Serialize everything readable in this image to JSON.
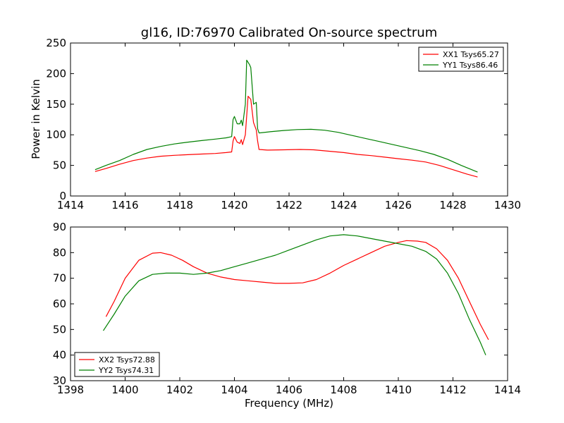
{
  "figure": {
    "title": "gl16, ID:76970 Calibrated On-source spectrum",
    "ylabel": "Power in Kelvin",
    "xlabel": "Frequency (MHz)"
  },
  "chart_data": [
    {
      "type": "line",
      "title": "gl16, ID:76970 Calibrated On-source spectrum",
      "xlabel": "",
      "ylabel": "Power in Kelvin",
      "xlim": [
        1414,
        1430
      ],
      "ylim": [
        0,
        250
      ],
      "xticks": [
        1414,
        1416,
        1418,
        1420,
        1422,
        1424,
        1426,
        1428,
        1430
      ],
      "yticks": [
        0,
        50,
        100,
        150,
        200,
        250
      ],
      "legend_position": "top-right",
      "grid": false,
      "series": [
        {
          "name": "XX1 Tsys65.27",
          "color": "#ff0000",
          "points": [
            [
              1414.9,
              40
            ],
            [
              1415.3,
              45
            ],
            [
              1415.8,
              52
            ],
            [
              1416.3,
              58
            ],
            [
              1416.8,
              62
            ],
            [
              1417.3,
              65
            ],
            [
              1417.8,
              66.5
            ],
            [
              1418.3,
              67.5
            ],
            [
              1418.8,
              68.5
            ],
            [
              1419.3,
              69.5
            ],
            [
              1419.7,
              71
            ],
            [
              1419.9,
              72
            ],
            [
              1419.95,
              90
            ],
            [
              1420.0,
              97
            ],
            [
              1420.1,
              88
            ],
            [
              1420.2,
              86
            ],
            [
              1420.25,
              92
            ],
            [
              1420.3,
              84
            ],
            [
              1420.4,
              100
            ],
            [
              1420.5,
              163
            ],
            [
              1420.6,
              158
            ],
            [
              1420.7,
              120
            ],
            [
              1420.8,
              108
            ],
            [
              1420.85,
              90
            ],
            [
              1420.9,
              76
            ],
            [
              1421.2,
              75
            ],
            [
              1421.8,
              75.5
            ],
            [
              1422.4,
              76
            ],
            [
              1422.9,
              75.5
            ],
            [
              1423.5,
              73
            ],
            [
              1424.0,
              71
            ],
            [
              1424.5,
              68
            ],
            [
              1425.0,
              66
            ],
            [
              1425.5,
              63.5
            ],
            [
              1426.0,
              61
            ],
            [
              1426.5,
              58.5
            ],
            [
              1427.0,
              55.5
            ],
            [
              1427.5,
              50
            ],
            [
              1428.0,
              43
            ],
            [
              1428.5,
              36
            ],
            [
              1428.9,
              31
            ]
          ]
        },
        {
          "name": "YY1 Tsys86.46",
          "color": "#008000",
          "points": [
            [
              1414.9,
              43
            ],
            [
              1415.3,
              50
            ],
            [
              1415.8,
              58
            ],
            [
              1416.3,
              68
            ],
            [
              1416.8,
              76
            ],
            [
              1417.3,
              81
            ],
            [
              1417.8,
              85
            ],
            [
              1418.3,
              88
            ],
            [
              1418.8,
              90.5
            ],
            [
              1419.3,
              93
            ],
            [
              1419.7,
              95
            ],
            [
              1419.9,
              97
            ],
            [
              1419.95,
              125
            ],
            [
              1420.0,
              130
            ],
            [
              1420.1,
              118
            ],
            [
              1420.2,
              118
            ],
            [
              1420.25,
              124
            ],
            [
              1420.3,
              115
            ],
            [
              1420.4,
              150
            ],
            [
              1420.45,
              222
            ],
            [
              1420.55,
              215
            ],
            [
              1420.6,
              210
            ],
            [
              1420.7,
              150
            ],
            [
              1420.8,
              153
            ],
            [
              1420.85,
              110
            ],
            [
              1420.9,
              103
            ],
            [
              1421.3,
              105
            ],
            [
              1421.8,
              107
            ],
            [
              1422.3,
              108.5
            ],
            [
              1422.8,
              109
            ],
            [
              1423.3,
              107.5
            ],
            [
              1423.8,
              104
            ],
            [
              1424.3,
              99
            ],
            [
              1424.8,
              94
            ],
            [
              1425.3,
              89
            ],
            [
              1425.8,
              84
            ],
            [
              1426.3,
              79
            ],
            [
              1426.8,
              74
            ],
            [
              1427.3,
              68
            ],
            [
              1427.8,
              60
            ],
            [
              1428.3,
              50
            ],
            [
              1428.9,
              39
            ]
          ]
        }
      ]
    },
    {
      "type": "line",
      "title": "",
      "xlabel": "Frequency (MHz)",
      "ylabel": "",
      "xlim": [
        1398,
        1414
      ],
      "ylim": [
        30,
        90
      ],
      "xticks": [
        1398,
        1400,
        1402,
        1404,
        1406,
        1408,
        1410,
        1412,
        1414
      ],
      "yticks": [
        30,
        40,
        50,
        60,
        70,
        80,
        90
      ],
      "legend_position": "bottom-left",
      "grid": false,
      "series": [
        {
          "name": "XX2 Tsys72.88",
          "color": "#ff0000",
          "points": [
            [
              1399.3,
              55
            ],
            [
              1399.6,
              61
            ],
            [
              1400.0,
              70
            ],
            [
              1400.5,
              77
            ],
            [
              1401.0,
              79.8
            ],
            [
              1401.3,
              80
            ],
            [
              1401.7,
              79
            ],
            [
              1402.1,
              77
            ],
            [
              1402.5,
              74.5
            ],
            [
              1403.0,
              72
            ],
            [
              1403.5,
              70.5
            ],
            [
              1404.0,
              69.5
            ],
            [
              1404.5,
              69
            ],
            [
              1405.0,
              68.5
            ],
            [
              1405.5,
              68
            ],
            [
              1406.0,
              68
            ],
            [
              1406.5,
              68.2
            ],
            [
              1407.0,
              69.5
            ],
            [
              1407.5,
              72
            ],
            [
              1408.0,
              75
            ],
            [
              1408.5,
              77.5
            ],
            [
              1409.0,
              80
            ],
            [
              1409.5,
              82.5
            ],
            [
              1410.0,
              84
            ],
            [
              1410.3,
              84.7
            ],
            [
              1410.7,
              84.5
            ],
            [
              1411.0,
              84
            ],
            [
              1411.4,
              81.5
            ],
            [
              1411.8,
              77
            ],
            [
              1412.2,
              70
            ],
            [
              1412.6,
              61
            ],
            [
              1413.0,
              52
            ],
            [
              1413.3,
              46
            ]
          ]
        },
        {
          "name": "YY2 Tsys74.31",
          "color": "#008000",
          "points": [
            [
              1399.2,
              49.5
            ],
            [
              1399.6,
              56
            ],
            [
              1400.0,
              63
            ],
            [
              1400.5,
              69
            ],
            [
              1401.0,
              71.5
            ],
            [
              1401.5,
              72
            ],
            [
              1402.0,
              72
            ],
            [
              1402.5,
              71.5
            ],
            [
              1403.0,
              72
            ],
            [
              1403.5,
              73
            ],
            [
              1404.0,
              74.5
            ],
            [
              1404.5,
              76
            ],
            [
              1405.0,
              77.5
            ],
            [
              1405.5,
              79
            ],
            [
              1406.0,
              81
            ],
            [
              1406.5,
              83
            ],
            [
              1407.0,
              85
            ],
            [
              1407.5,
              86.5
            ],
            [
              1408.0,
              87
            ],
            [
              1408.5,
              86.5
            ],
            [
              1409.0,
              85.5
            ],
            [
              1409.5,
              84.5
            ],
            [
              1410.0,
              83.5
            ],
            [
              1410.5,
              82.5
            ],
            [
              1411.0,
              80.5
            ],
            [
              1411.4,
              77.5
            ],
            [
              1411.8,
              72
            ],
            [
              1412.2,
              64
            ],
            [
              1412.6,
              54
            ],
            [
              1413.0,
              45
            ],
            [
              1413.2,
              40
            ]
          ]
        }
      ]
    }
  ]
}
